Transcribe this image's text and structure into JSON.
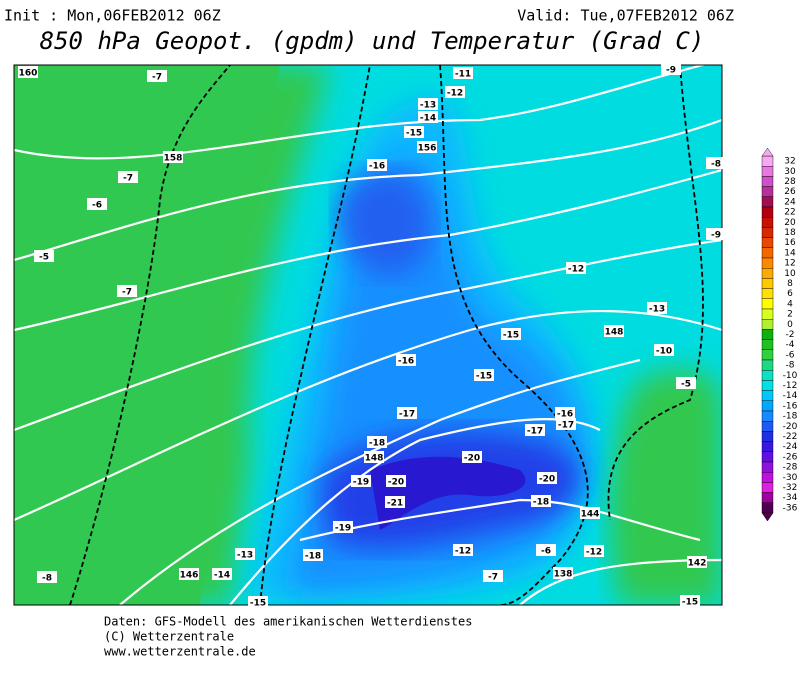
{
  "header": {
    "init": "Init : Mon,06FEB2012 06Z",
    "valid": "Valid: Tue,07FEB2012 06Z",
    "title": "850 hPa Geopot. (gpdm) und Temperatur (Grad C)"
  },
  "map": {
    "labels": [
      "160",
      "-7",
      "-11",
      "-9",
      "-12",
      "-13",
      "-14",
      "-15",
      "156",
      "158",
      "-16",
      "-8",
      "-7",
      "-6",
      "-9",
      "-5",
      "-12",
      "-7",
      "-13",
      "-15",
      "148",
      "-10",
      "-16",
      "-15",
      "-5",
      "-17",
      "-16",
      "-17",
      "-17",
      "-18",
      "148",
      "-20",
      "-19",
      "-20",
      "-20",
      "-21",
      "-18",
      "-19",
      "144",
      "-12",
      "-6",
      "-12",
      "-13",
      "-18",
      "146",
      "-14",
      "-8",
      "-7",
      "138",
      "142",
      "-15",
      "-15"
    ]
  },
  "colorbar": {
    "entries": [
      {
        "label": "32",
        "color": "#f8a8f0"
      },
      {
        "label": "30",
        "color": "#e878e0"
      },
      {
        "label": "28",
        "color": "#d050c8"
      },
      {
        "label": "26",
        "color": "#b83098"
      },
      {
        "label": "24",
        "color": "#a01050"
      },
      {
        "label": "22",
        "color": "#b00010"
      },
      {
        "label": "20",
        "color": "#c81000"
      },
      {
        "label": "18",
        "color": "#d82800"
      },
      {
        "label": "16",
        "color": "#e84800"
      },
      {
        "label": "14",
        "color": "#f06800"
      },
      {
        "label": "12",
        "color": "#ff8800"
      },
      {
        "label": "10",
        "color": "#ffa800"
      },
      {
        "label": "8",
        "color": "#ffc800"
      },
      {
        "label": "6",
        "color": "#ffe000"
      },
      {
        "label": "4",
        "color": "#ffff00"
      },
      {
        "label": "2",
        "color": "#d8ff20"
      },
      {
        "label": "0",
        "color": "#b0f030"
      },
      {
        "label": "-2",
        "color": "#10b010"
      },
      {
        "label": "-4",
        "color": "#20c020"
      },
      {
        "label": "-6",
        "color": "#30d040"
      },
      {
        "label": "-8",
        "color": "#20d880"
      },
      {
        "label": "-10",
        "color": "#10e0c0"
      },
      {
        "label": "-12",
        "color": "#00e0e8"
      },
      {
        "label": "-14",
        "color": "#00c8ff"
      },
      {
        "label": "-16",
        "color": "#00a8ff"
      },
      {
        "label": "-18",
        "color": "#1888ff"
      },
      {
        "label": "-20",
        "color": "#2058f8"
      },
      {
        "label": "-22",
        "color": "#2030e0"
      },
      {
        "label": "-24",
        "color": "#3818e0"
      },
      {
        "label": "-26",
        "color": "#6010e0"
      },
      {
        "label": "-28",
        "color": "#9010e0"
      },
      {
        "label": "-30",
        "color": "#c010e0"
      },
      {
        "label": "-32",
        "color": "#e020e0"
      },
      {
        "label": "-34",
        "color": "#a000a0"
      },
      {
        "label": "-36",
        "color": "#500050"
      }
    ]
  },
  "footer": {
    "lines": [
      "Daten: GFS-Modell des amerikanischen Wetterdienstes",
      "(C) Wetterzentrale",
      "www.wetterzentrale.de"
    ]
  }
}
